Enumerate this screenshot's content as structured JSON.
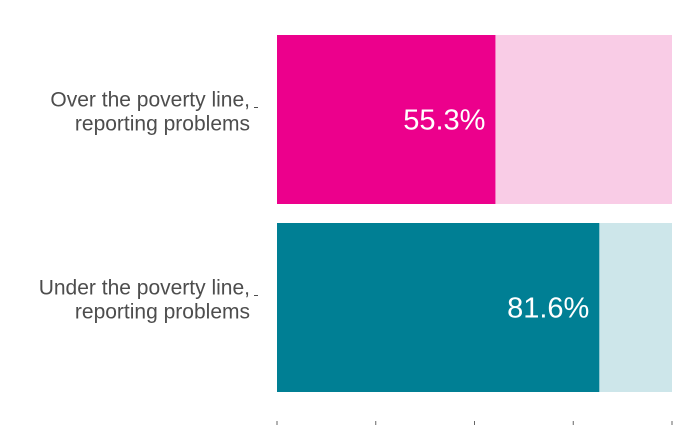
{
  "chart_data": {
    "type": "bar",
    "orientation": "horizontal",
    "stacked": true,
    "categories": [
      [
        "Over the poverty line,",
        "reporting problems"
      ],
      [
        "Under the poverty line,",
        "reporting problems"
      ]
    ],
    "values": [
      55.3,
      81.6
    ],
    "value_labels": [
      "55.3%",
      "81.6%"
    ],
    "remainder_to": 100,
    "bar_colors": [
      "#ec008c",
      "#007f94"
    ],
    "remainder_colors": [
      "#f9cce6",
      "#cde6ea"
    ],
    "xlim": [
      0,
      100
    ],
    "x_ticks": 5,
    "title": "",
    "xlabel": "",
    "ylabel": ""
  }
}
